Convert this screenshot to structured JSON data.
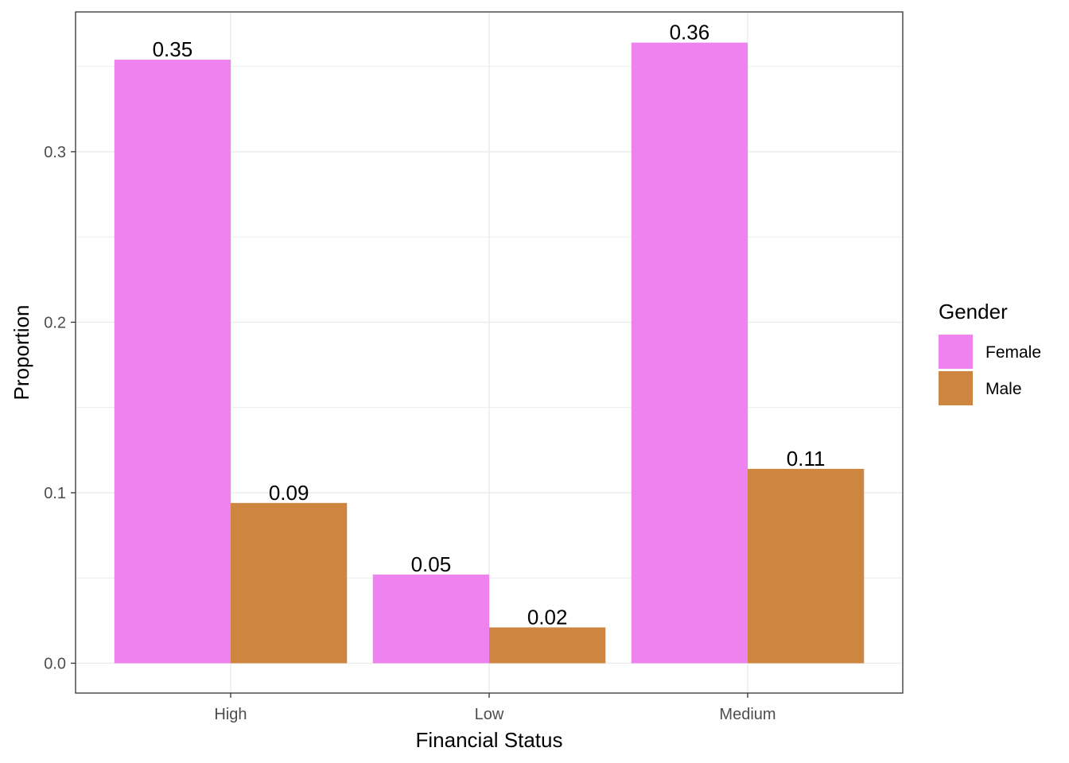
{
  "chart_data": {
    "type": "bar",
    "xlabel": "Financial Status",
    "ylabel": "Proportion",
    "categories": [
      "High",
      "Low",
      "Medium"
    ],
    "series": [
      {
        "name": "Female",
        "values": [
          0.354,
          0.052,
          0.364
        ],
        "labels": [
          "0.35",
          "0.05",
          "0.36"
        ],
        "color": "#EE82EE"
      },
      {
        "name": "Male",
        "values": [
          0.094,
          0.021,
          0.114
        ],
        "labels": [
          "0.09",
          "0.02",
          "0.11"
        ],
        "color": "#CD853F"
      }
    ],
    "ylim": [
      -0.0175,
      0.382
    ],
    "yticks": [
      0.0,
      0.1,
      0.2,
      0.3
    ],
    "ytick_labels": [
      "0.0",
      "0.1",
      "0.2",
      "0.3"
    ],
    "grid": true,
    "legend": {
      "title": "Gender",
      "placement": "right"
    }
  }
}
